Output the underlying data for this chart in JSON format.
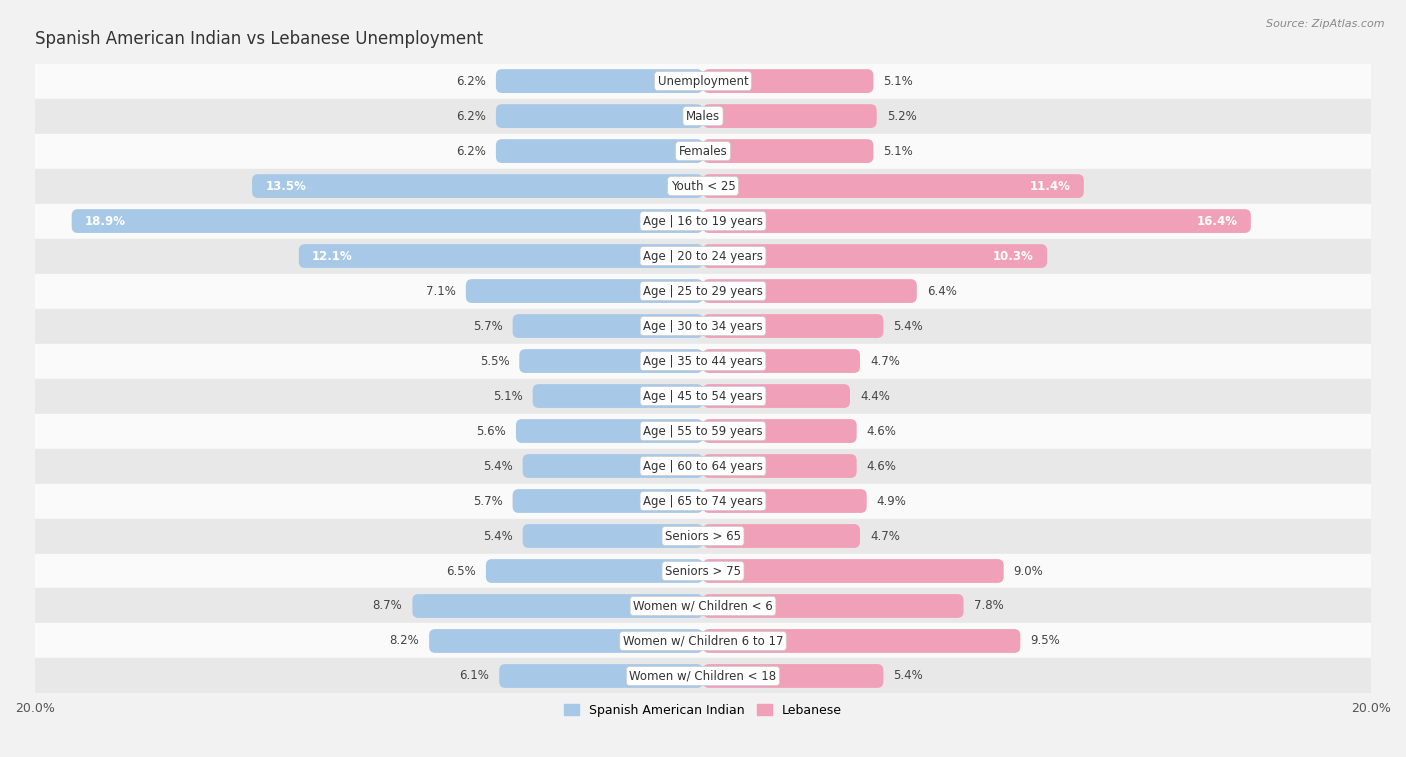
{
  "title": "Spanish American Indian vs Lebanese Unemployment",
  "source": "Source: ZipAtlas.com",
  "categories": [
    "Unemployment",
    "Males",
    "Females",
    "Youth < 25",
    "Age | 16 to 19 years",
    "Age | 20 to 24 years",
    "Age | 25 to 29 years",
    "Age | 30 to 34 years",
    "Age | 35 to 44 years",
    "Age | 45 to 54 years",
    "Age | 55 to 59 years",
    "Age | 60 to 64 years",
    "Age | 65 to 74 years",
    "Seniors > 65",
    "Seniors > 75",
    "Women w/ Children < 6",
    "Women w/ Children 6 to 17",
    "Women w/ Children < 18"
  ],
  "spanish_american_indian": [
    6.2,
    6.2,
    6.2,
    13.5,
    18.9,
    12.1,
    7.1,
    5.7,
    5.5,
    5.1,
    5.6,
    5.4,
    5.7,
    5.4,
    6.5,
    8.7,
    8.2,
    6.1
  ],
  "lebanese": [
    5.1,
    5.2,
    5.1,
    11.4,
    16.4,
    10.3,
    6.4,
    5.4,
    4.7,
    4.4,
    4.6,
    4.6,
    4.9,
    4.7,
    9.0,
    7.8,
    9.5,
    5.4
  ],
  "color_blue": "#a8c8e8",
  "color_pink": "#f0a0b8",
  "background_color": "#f2f2f2",
  "row_bg_light": "#fafafa",
  "row_bg_dark": "#e8e8e8",
  "x_max": 20.0,
  "legend_label_blue": "Spanish American Indian",
  "legend_label_pink": "Lebanese",
  "title_fontsize": 12,
  "label_fontsize": 8.5,
  "value_fontsize": 8.5
}
